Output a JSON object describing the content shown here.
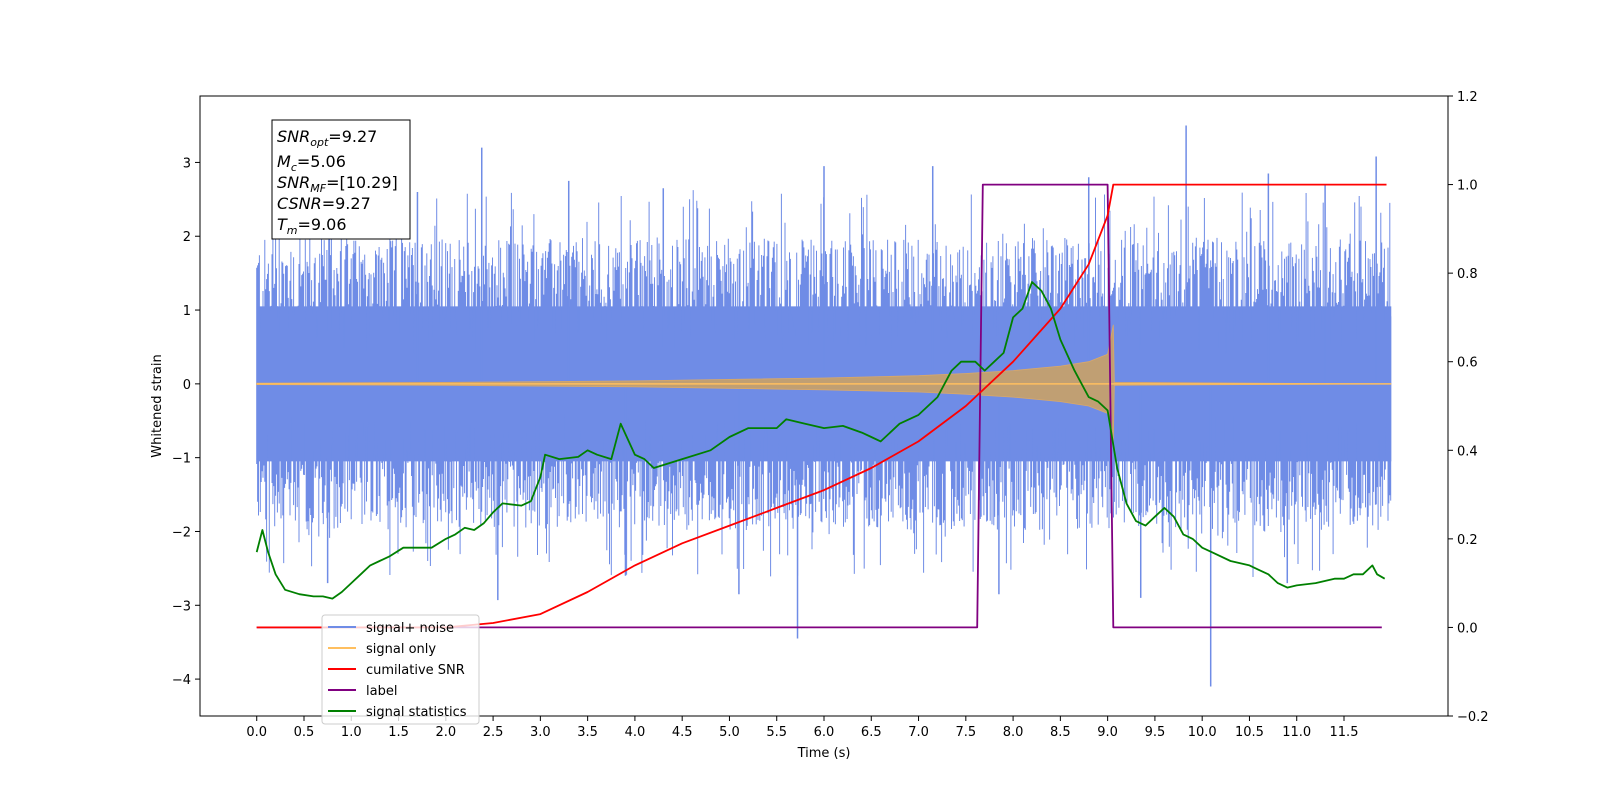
{
  "chart_data": {
    "type": "line",
    "xlabel": "Time (s)",
    "ylabel": "Whitened strain",
    "xlim": [
      -0.6,
      12.6
    ],
    "ylim": [
      -4.5,
      3.9
    ],
    "y2lim": [
      -0.2,
      1.2
    ],
    "x_ticks": [
      0.0,
      0.5,
      1.0,
      1.5,
      2.0,
      2.5,
      3.0,
      3.5,
      4.0,
      4.5,
      5.0,
      5.5,
      6.0,
      6.5,
      7.0,
      7.5,
      8.0,
      8.5,
      9.0,
      9.5,
      10.0,
      10.5,
      11.0,
      11.5
    ],
    "x_tick_labels": [
      "0.0",
      "0.5",
      "1.0",
      "1.5",
      "2.0",
      "2.5",
      "3.0",
      "3.5",
      "4.0",
      "4.5",
      "5.0",
      "5.5",
      "6.0",
      "6.5",
      "7.0",
      "7.5",
      "8.0",
      "8.5",
      "9.0",
      "9.5",
      "10.0",
      "10.5",
      "11.0",
      "11.5"
    ],
    "y_ticks": [
      3,
      2,
      1,
      0,
      -1,
      -2,
      -3,
      -4
    ],
    "y_tick_labels": [
      "3",
      "2",
      "1",
      "0",
      "−1",
      "−2",
      "−3",
      "−4"
    ],
    "y2_ticks": [
      1.2,
      1.0,
      0.8,
      0.6,
      0.4,
      0.2,
      0.0,
      -0.2
    ],
    "y2_tick_labels": [
      "1.2",
      "1.0",
      "0.8",
      "0.6",
      "0.4",
      "0.2",
      "0.0",
      "−0.2"
    ],
    "legend_position": "lower-left",
    "grid": false,
    "series": [
      {
        "name": "signal+ noise",
        "axis": "left",
        "color": "#6f8ce6",
        "representation": "noise band",
        "x_range": [
          0.0,
          12.0
        ],
        "y_band": [
          -2.2,
          2.2
        ],
        "spikes": [
          {
            "x": 2.38,
            "y": 3.2
          },
          {
            "x": 9.83,
            "y": 3.5
          },
          {
            "x": 11.84,
            "y": 3.08
          },
          {
            "x": 5.72,
            "y": -3.45
          },
          {
            "x": 10.09,
            "y": -4.1
          },
          {
            "x": 2.55,
            "y": -2.93
          },
          {
            "x": 6.0,
            "y": 2.95
          },
          {
            "x": 7.15,
            "y": 2.95
          },
          {
            "x": 10.7,
            "y": 2.85
          },
          {
            "x": 3.3,
            "y": 2.75
          },
          {
            "x": 4.3,
            "y": 2.65
          },
          {
            "x": 8.8,
            "y": 2.8
          },
          {
            "x": 0.75,
            "y": -2.7
          },
          {
            "x": 7.85,
            "y": -2.85
          },
          {
            "x": 10.9,
            "y": -2.7
          },
          {
            "x": 9.35,
            "y": -2.9
          },
          {
            "x": 5.1,
            "y": -2.85
          },
          {
            "x": 1.7,
            "y": 2.6
          },
          {
            "x": 3.9,
            "y": -2.6
          },
          {
            "x": 11.3,
            "y": 2.7
          }
        ]
      },
      {
        "name": "signal only",
        "axis": "left",
        "color": "#ffbf5f",
        "representation": "chirp envelope",
        "x": [
          0.0,
          2.0,
          4.0,
          5.0,
          6.0,
          7.0,
          7.5,
          8.0,
          8.5,
          8.8,
          9.0,
          9.06,
          9.07,
          12.0
        ],
        "envelope": [
          0.01,
          0.02,
          0.04,
          0.06,
          0.08,
          0.11,
          0.14,
          0.18,
          0.24,
          0.3,
          0.4,
          0.8,
          0.02,
          0.0
        ]
      },
      {
        "name": "cumilative SNR",
        "axis": "right",
        "color": "#ff0000",
        "x": [
          0.0,
          2.0,
          2.5,
          3.0,
          3.5,
          4.0,
          4.5,
          5.0,
          5.5,
          6.0,
          6.5,
          7.0,
          7.5,
          8.0,
          8.5,
          8.8,
          9.0,
          9.06,
          9.07,
          11.95
        ],
        "y": [
          0.0,
          0.0,
          0.01,
          0.03,
          0.08,
          0.14,
          0.19,
          0.23,
          0.27,
          0.31,
          0.36,
          0.42,
          0.5,
          0.6,
          0.72,
          0.82,
          0.93,
          1.0,
          1.0,
          1.0
        ]
      },
      {
        "name": "label",
        "axis": "right",
        "color": "#800080",
        "x": [
          0.0,
          7.62,
          7.68,
          9.0,
          9.06,
          11.9
        ],
        "y": [
          0.0,
          0.0,
          1.0,
          1.0,
          0.0,
          0.0
        ]
      },
      {
        "name": "signal statistics",
        "axis": "right",
        "color": "#008000",
        "x": [
          0.0,
          0.06,
          0.12,
          0.2,
          0.3,
          0.45,
          0.6,
          0.7,
          0.8,
          0.9,
          1.0,
          1.1,
          1.2,
          1.3,
          1.4,
          1.55,
          1.7,
          1.85,
          2.0,
          2.1,
          2.2,
          2.3,
          2.4,
          2.5,
          2.6,
          2.8,
          2.9,
          3.0,
          3.05,
          3.2,
          3.4,
          3.5,
          3.6,
          3.75,
          3.85,
          4.0,
          4.1,
          4.2,
          4.5,
          4.8,
          5.0,
          5.2,
          5.5,
          5.6,
          5.8,
          6.0,
          6.2,
          6.4,
          6.5,
          6.6,
          6.8,
          7.0,
          7.2,
          7.35,
          7.45,
          7.55,
          7.6,
          7.7,
          7.8,
          7.9,
          8.0,
          8.1,
          8.2,
          8.3,
          8.4,
          8.5,
          8.65,
          8.8,
          8.9,
          9.0,
          9.1,
          9.2,
          9.3,
          9.4,
          9.5,
          9.6,
          9.7,
          9.8,
          9.9,
          10.0,
          10.1,
          10.3,
          10.5,
          10.6,
          10.7,
          10.8,
          10.9,
          11.0,
          11.2,
          11.4,
          11.5,
          11.6,
          11.7,
          11.8,
          11.85,
          11.93
        ],
        "y": [
          0.17,
          0.22,
          0.17,
          0.12,
          0.085,
          0.075,
          0.07,
          0.07,
          0.065,
          0.08,
          0.1,
          0.12,
          0.14,
          0.15,
          0.16,
          0.18,
          0.18,
          0.18,
          0.2,
          0.21,
          0.225,
          0.22,
          0.235,
          0.26,
          0.28,
          0.275,
          0.285,
          0.34,
          0.39,
          0.38,
          0.385,
          0.4,
          0.39,
          0.38,
          0.46,
          0.39,
          0.38,
          0.36,
          0.38,
          0.4,
          0.43,
          0.45,
          0.45,
          0.47,
          0.46,
          0.45,
          0.455,
          0.44,
          0.43,
          0.42,
          0.46,
          0.48,
          0.52,
          0.58,
          0.6,
          0.6,
          0.6,
          0.58,
          0.6,
          0.62,
          0.7,
          0.72,
          0.78,
          0.76,
          0.72,
          0.65,
          0.58,
          0.52,
          0.51,
          0.49,
          0.36,
          0.28,
          0.24,
          0.23,
          0.25,
          0.27,
          0.25,
          0.21,
          0.2,
          0.18,
          0.17,
          0.15,
          0.14,
          0.13,
          0.12,
          0.1,
          0.09,
          0.095,
          0.1,
          0.11,
          0.11,
          0.12,
          0.12,
          0.14,
          0.12,
          0.11
        ]
      }
    ],
    "legend_entries": [
      {
        "label": "signal+ noise",
        "color": "#6f8ce6"
      },
      {
        "label": "signal only",
        "color": "#ffbf5f"
      },
      {
        "label": "cumilative SNR",
        "color": "#ff0000"
      },
      {
        "label": "label",
        "color": "#800080"
      },
      {
        "label": "signal statistics",
        "color": "#008000"
      }
    ],
    "annotation": {
      "snr_opt": {
        "name": "SNR",
        "sub": "opt",
        "value": "=9.27"
      },
      "mc": {
        "name": "M",
        "sub": "c",
        "value": "=5.06"
      },
      "snr_mf": {
        "name": "SNR",
        "sub": "MF",
        "value": "=[10.29]"
      },
      "csnr": {
        "name": "CSNR",
        "sub": "",
        "value": "=9.27"
      },
      "tm": {
        "name": "T",
        "sub": "m",
        "value": "=9.06"
      }
    }
  }
}
